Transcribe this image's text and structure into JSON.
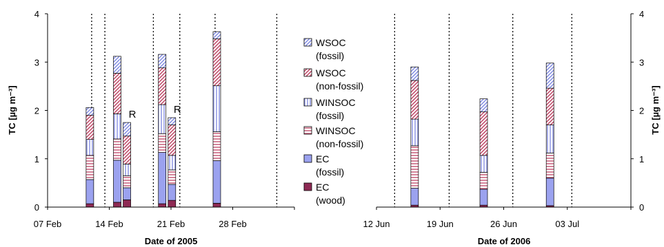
{
  "legend": [
    {
      "id": "wsoc_fossil",
      "label_line1": "WSOC",
      "label_line2": "(fossil)",
      "color": "#9aa2e8",
      "pattern": "diag"
    },
    {
      "id": "wsoc_nonfossil",
      "label_line1": "WSOC",
      "label_line2": "(non-fossil)",
      "color": "#c85a78",
      "pattern": "diag"
    },
    {
      "id": "winsoc_fossil",
      "label_line1": "WINSOC",
      "label_line2": "(fossil)",
      "color": "#9aa2e8",
      "pattern": "vert"
    },
    {
      "id": "winsoc_nonfossil",
      "label_line1": "WINSOC",
      "label_line2": "(non-fossil)",
      "color": "#c85a78",
      "pattern": "horiz"
    },
    {
      "id": "ec_fossil",
      "label_line1": "EC",
      "label_line2": "(fossil)",
      "color": "#9ba2ef",
      "pattern": "solid"
    },
    {
      "id": "ec_wood",
      "label_line1": "EC",
      "label_line2": "(wood)",
      "color": "#8e2a54",
      "pattern": "solid"
    }
  ],
  "chart_data": [
    {
      "type": "bar",
      "stacked": true,
      "xlabel": "Date of 2005",
      "ylabel": "TC [µg m⁻³]",
      "ylim": [
        0,
        4
      ],
      "yticks": [
        0,
        1,
        2,
        3,
        4
      ],
      "xticks": [
        {
          "x": 0,
          "label": "07 Feb"
        },
        {
          "x": 7,
          "label": "14 Feb"
        },
        {
          "x": 14,
          "label": "21 Feb"
        },
        {
          "x": 21,
          "label": "28 Feb"
        }
      ],
      "xlim": [
        0,
        28
      ],
      "period_dividers": [
        5,
        6.5,
        12,
        15,
        19,
        26
      ],
      "series_order": [
        "ec_wood",
        "ec_fossil",
        "winsoc_nonfossil",
        "winsoc_fossil",
        "wsoc_nonfossil",
        "wsoc_fossil"
      ],
      "bars": [
        {
          "x": 4.8,
          "annotation": "",
          "values": {
            "ec_wood": 0.07,
            "ec_fossil": 0.5,
            "winsoc_nonfossil": 0.5,
            "winsoc_fossil": 0.33,
            "wsoc_nonfossil": 0.5,
            "wsoc_fossil": 0.16
          }
        },
        {
          "x": 7.9,
          "annotation": "",
          "values": {
            "ec_wood": 0.1,
            "ec_fossil": 0.87,
            "winsoc_nonfossil": 0.44,
            "winsoc_fossil": 0.52,
            "wsoc_nonfossil": 0.84,
            "wsoc_fossil": 0.35
          }
        },
        {
          "x": 9.0,
          "annotation": "R",
          "values": {
            "ec_wood": 0.15,
            "ec_fossil": 0.25,
            "winsoc_nonfossil": 0.25,
            "winsoc_fossil": 0.24,
            "wsoc_nonfossil": 0.58,
            "wsoc_fossil": 0.28
          }
        },
        {
          "x": 13.0,
          "annotation": "",
          "values": {
            "ec_wood": 0.07,
            "ec_fossil": 1.06,
            "winsoc_nonfossil": 0.39,
            "winsoc_fossil": 0.6,
            "wsoc_nonfossil": 0.76,
            "wsoc_fossil": 0.28
          }
        },
        {
          "x": 14.1,
          "annotation": "R",
          "values": {
            "ec_wood": 0.14,
            "ec_fossil": 0.33,
            "winsoc_nonfossil": 0.3,
            "winsoc_fossil": 0.3,
            "wsoc_nonfossil": 0.63,
            "wsoc_fossil": 0.15
          }
        },
        {
          "x": 19.2,
          "annotation": "",
          "values": {
            "ec_wood": 0.08,
            "ec_fossil": 0.88,
            "winsoc_nonfossil": 0.6,
            "winsoc_fossil": 0.95,
            "wsoc_nonfossil": 0.97,
            "wsoc_fossil": 0.15
          }
        }
      ]
    },
    {
      "type": "bar",
      "stacked": true,
      "xlabel": "Date of 2006",
      "ylabel": "TC [µg m⁻³]",
      "ylim": [
        0,
        4
      ],
      "yticks": [
        0,
        1,
        2,
        3,
        4
      ],
      "xticks": [
        {
          "x": 0,
          "label": "12 Jun"
        },
        {
          "x": 7,
          "label": "19 Jun"
        },
        {
          "x": 14,
          "label": "26 Jun"
        },
        {
          "x": 21,
          "label": "03 Jul"
        }
      ],
      "xlim": [
        0,
        28
      ],
      "period_dividers": [
        2,
        8,
        15,
        21.5
      ],
      "series_order": [
        "ec_wood",
        "ec_fossil",
        "winsoc_nonfossil",
        "winsoc_fossil",
        "wsoc_nonfossil",
        "wsoc_fossil"
      ],
      "bars": [
        {
          "x": 4.2,
          "annotation": "",
          "values": {
            "ec_wood": 0.04,
            "ec_fossil": 0.35,
            "winsoc_nonfossil": 0.88,
            "winsoc_fossil": 0.55,
            "wsoc_nonfossil": 0.8,
            "wsoc_fossil": 0.28
          }
        },
        {
          "x": 11.8,
          "annotation": "",
          "values": {
            "ec_wood": 0.04,
            "ec_fossil": 0.33,
            "winsoc_nonfossil": 0.35,
            "winsoc_fossil": 0.35,
            "wsoc_nonfossil": 0.9,
            "wsoc_fossil": 0.27
          }
        },
        {
          "x": 19.1,
          "annotation": "",
          "values": {
            "ec_wood": 0.03,
            "ec_fossil": 0.57,
            "winsoc_nonfossil": 0.52,
            "winsoc_fossil": 0.58,
            "wsoc_nonfossil": 0.76,
            "wsoc_fossil": 0.52
          }
        }
      ]
    }
  ]
}
